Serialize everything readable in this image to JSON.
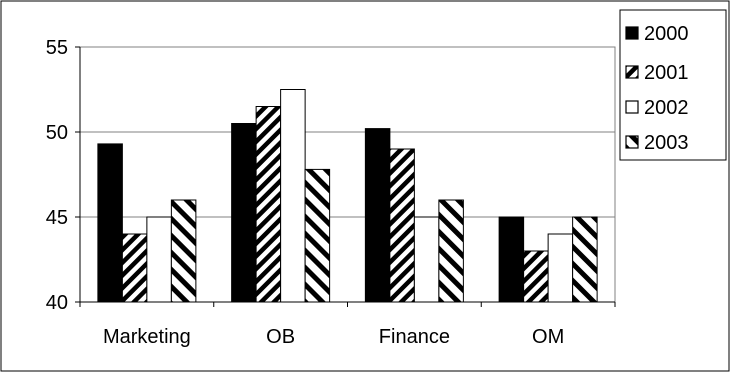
{
  "chart_data": {
    "type": "bar",
    "categories": [
      "Marketing",
      "OB",
      "Finance",
      "OM"
    ],
    "series": [
      {
        "name": "2000",
        "values": [
          49.3,
          50.5,
          50.2,
          45.0
        ]
      },
      {
        "name": "2001",
        "values": [
          44.0,
          51.5,
          49.0,
          43.0
        ]
      },
      {
        "name": "2002",
        "values": [
          45.0,
          52.5,
          45.0,
          44.0
        ]
      },
      {
        "name": "2003",
        "values": [
          46.0,
          47.8,
          46.0,
          45.0
        ]
      }
    ],
    "ylim": [
      40,
      55
    ],
    "yticks": [
      40,
      45,
      50,
      55
    ],
    "ytick_labels": [
      "40",
      "45",
      "50",
      "55"
    ],
    "grid": true,
    "legend_position": "right",
    "series_styles": [
      {
        "fill": "black"
      },
      {
        "fill": "hatch-back-diagonal-dense"
      },
      {
        "fill": "white"
      },
      {
        "fill": "hatch-forward-diagonal"
      }
    ]
  }
}
